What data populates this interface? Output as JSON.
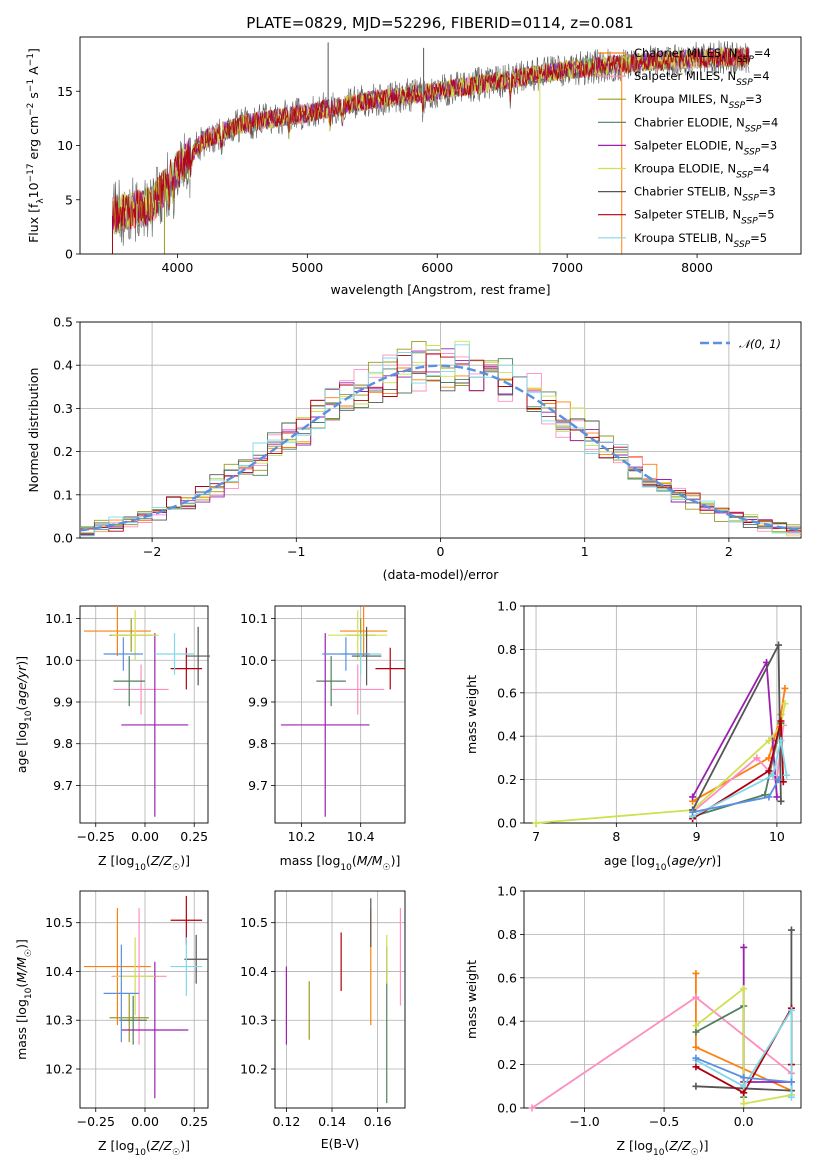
{
  "title": "PLATE=0829, MJD=52296, FIBERID=0114, z=0.081",
  "colors": [
    "#ff7f0e",
    "#ff8ec0",
    "#9a9a20",
    "#4f7f5f",
    "#9a20b0",
    "#d0e050",
    "#555555",
    "#b00010",
    "#80d8e8"
  ],
  "model_names": [
    "Chabrier MILES",
    "Salpeter MILES",
    "Kroupa MILES",
    "Chabrier ELODIE",
    "Salpeter ELODIE",
    "Kroupa ELODIE",
    "Chabrier STELIB",
    "Salpeter STELIB",
    "Kroupa STELIB"
  ],
  "chart_data": [
    {
      "id": "spectrum",
      "type": "line",
      "xlabel": "wavelength [Angstrom, rest frame]",
      "ylabel": "Flux [f_λ 10^-17 erg cm^-2 s^-1 A^-1]",
      "xlim": [
        3250,
        8800
      ],
      "ylim": [
        0,
        20
      ],
      "xticks": [
        4000,
        5000,
        6000,
        7000,
        8000
      ],
      "yticks": [
        0,
        5,
        10,
        15
      ],
      "data_range": [
        3500,
        8400
      ],
      "continuum": [
        [
          3500,
          3.5
        ],
        [
          3800,
          4.5
        ],
        [
          3950,
          7.0
        ],
        [
          4200,
          10.5
        ],
        [
          4500,
          12.0
        ],
        [
          5000,
          13.0
        ],
        [
          5500,
          14.2
        ],
        [
          6000,
          15.0
        ],
        [
          6500,
          16.0
        ],
        [
          7000,
          17.0
        ],
        [
          7500,
          17.6
        ],
        [
          8000,
          18.0
        ],
        [
          8400,
          18.2
        ]
      ],
      "legend": [
        {
          "name": "Chabrier MILES",
          "nssp": "4"
        },
        {
          "name": "Salpeter MILES",
          "nssp": "4"
        },
        {
          "name": "Kroupa MILES",
          "nssp": "3"
        },
        {
          "name": "Chabrier ELODIE",
          "nssp": "4"
        },
        {
          "name": "Salpeter ELODIE",
          "nssp": "3"
        },
        {
          "name": "Kroupa ELODIE",
          "nssp": "4"
        },
        {
          "name": "Chabrier STELIB",
          "nssp": "3"
        },
        {
          "name": "Salpeter STELIB",
          "nssp": "5"
        },
        {
          "name": "Kroupa STELIB",
          "nssp": "5"
        }
      ],
      "legend_position": "right",
      "grid": false
    },
    {
      "id": "residuals",
      "type": "step",
      "xlabel": "(data-model)/error",
      "ylabel": "Normed distribution",
      "xlim": [
        -2.5,
        2.5
      ],
      "ylim": [
        0,
        0.5
      ],
      "xticks": [
        -2,
        -1,
        0,
        1,
        2
      ],
      "yticks": [
        0.0,
        0.1,
        0.2,
        0.3,
        0.4,
        0.5
      ],
      "gaussian_label": "𝒩(0, 1)",
      "legend_position": "top-right",
      "grid": true
    },
    {
      "id": "age-vs-Z",
      "type": "errorbar",
      "xlabel": "Z [log10(Z/Z☉)]",
      "ylabel": "age [log10(age/yr)]",
      "xlim": [
        -0.33,
        0.32
      ],
      "ylim": [
        9.61,
        10.13
      ],
      "xticks": [
        -0.25,
        0.0,
        0.25
      ],
      "xticklabels": [
        "−0.25",
        "0.00",
        "0.25"
      ],
      "yticks": [
        9.7,
        9.8,
        9.9,
        10.0,
        10.1
      ],
      "points": [
        {
          "x": -0.14,
          "xerr": 0.17,
          "y": 10.07,
          "yerr": 0.06
        },
        {
          "x": -0.02,
          "xerr": 0.14,
          "y": 9.93,
          "yerr": 0.06
        },
        {
          "x": -0.07,
          "xerr": 0.11,
          "y": 10.06,
          "yerr": 0.04
        },
        {
          "x": -0.08,
          "xerr": 0.08,
          "y": 9.95,
          "yerr": 0.06
        },
        {
          "x": 0.05,
          "xerr": 0.17,
          "y": 9.845,
          "yerr": 0.22
        },
        {
          "x": -0.05,
          "xerr": 0.12,
          "y": 10.06,
          "yerr": 0.06
        },
        {
          "x": 0.27,
          "xerr": 0.06,
          "y": 10.01,
          "yerr": 0.07
        },
        {
          "x": 0.21,
          "xerr": 0.08,
          "y": 9.98,
          "yerr": 0.05
        },
        {
          "x": 0.15,
          "xerr": 0.1,
          "y": 10.015,
          "yerr": 0.05
        },
        {
          "x": -0.11,
          "xerr": 0.1,
          "y": 10.015,
          "yerr": 0.04
        }
      ],
      "grid": true
    },
    {
      "id": "age-vs-mass",
      "type": "errorbar",
      "xlabel": "mass [log10(M/M☉)]",
      "ylabel": "",
      "xlim": [
        10.11,
        10.55
      ],
      "ylim": [
        9.61,
        10.13
      ],
      "xticks": [
        10.2,
        10.4
      ],
      "yticks": [
        9.7,
        9.8,
        9.9,
        10.0,
        10.1
      ],
      "points": [
        {
          "x": 10.41,
          "xerr": 0.08,
          "y": 10.07,
          "yerr": 0.06
        },
        {
          "x": 10.39,
          "xerr": 0.09,
          "y": 9.93,
          "yerr": 0.06
        },
        {
          "x": 10.4,
          "xerr": 0.05,
          "y": 10.06,
          "yerr": 0.04
        },
        {
          "x": 10.3,
          "xerr": 0.05,
          "y": 9.95,
          "yerr": 0.06
        },
        {
          "x": 10.28,
          "xerr": 0.15,
          "y": 9.845,
          "yerr": 0.22
        },
        {
          "x": 10.39,
          "xerr": 0.1,
          "y": 10.06,
          "yerr": 0.06
        },
        {
          "x": 10.42,
          "xerr": 0.05,
          "y": 10.01,
          "yerr": 0.07
        },
        {
          "x": 10.5,
          "xerr": 0.05,
          "y": 9.98,
          "yerr": 0.05
        },
        {
          "x": 10.4,
          "xerr": 0.07,
          "y": 10.015,
          "yerr": 0.05
        },
        {
          "x": 10.35,
          "xerr": 0.08,
          "y": 10.015,
          "yerr": 0.04
        }
      ],
      "grid": true
    },
    {
      "id": "weight-vs-age",
      "type": "line",
      "xlabel": "age [log10(age/yr)]",
      "ylabel": "mass weight",
      "xlim": [
        6.85,
        10.3
      ],
      "ylim": [
        0,
        1
      ],
      "xticks": [
        7,
        8,
        9,
        10
      ],
      "yticks": [
        0.0,
        0.2,
        0.4,
        0.6,
        0.8,
        1.0
      ],
      "series": [
        {
          "color": "#ff7f0e",
          "points": [
            [
              8.95,
              0.1
            ],
            [
              9.9,
              0.3
            ],
            [
              10.05,
              0.5
            ],
            [
              10.1,
              0.62
            ]
          ]
        },
        {
          "color": "#ff8ec0",
          "points": [
            [
              8.95,
              0.05
            ],
            [
              9.75,
              0.3
            ],
            [
              10.0,
              0.2
            ],
            [
              10.08,
              0.45
            ]
          ]
        },
        {
          "color": "#4f7f5f",
          "points": [
            [
              8.95,
              0.03
            ],
            [
              9.85,
              0.13
            ],
            [
              10.0,
              0.38
            ],
            [
              10.05,
              0.46
            ]
          ]
        },
        {
          "color": "#9a20b0",
          "points": [
            [
              8.95,
              0.12
            ],
            [
              9.87,
              0.74
            ],
            [
              10.0,
              0.12
            ]
          ]
        },
        {
          "color": "#d0e050",
          "points": [
            [
              7.0,
              0.0
            ],
            [
              8.95,
              0.06
            ],
            [
              9.9,
              0.38
            ],
            [
              10.05,
              0.45
            ],
            [
              10.1,
              0.55
            ]
          ]
        },
        {
          "color": "#555555",
          "points": [
            [
              8.95,
              0.06
            ],
            [
              10.02,
              0.82
            ],
            [
              10.05,
              0.1
            ]
          ]
        },
        {
          "color": "#b00010",
          "points": [
            [
              8.95,
              0.02
            ],
            [
              9.9,
              0.24
            ],
            [
              10.05,
              0.47
            ],
            [
              10.08,
              0.19
            ]
          ]
        },
        {
          "color": "#80d8e8",
          "points": [
            [
              8.95,
              0.03
            ],
            [
              9.95,
              0.22
            ],
            [
              10.05,
              0.38
            ],
            [
              10.12,
              0.22
            ]
          ]
        },
        {
          "color": "#5b8fdf",
          "points": [
            [
              8.95,
              0.05
            ],
            [
              9.9,
              0.12
            ],
            [
              10.02,
              0.2
            ]
          ]
        }
      ],
      "grid": true
    },
    {
      "id": "mass-vs-Z",
      "type": "errorbar",
      "xlabel": "Z [log10(Z/Z☉)]",
      "ylabel": "mass [log10(M/M☉)]",
      "xlim": [
        -0.33,
        0.32
      ],
      "ylim": [
        10.12,
        10.565
      ],
      "xticks": [
        -0.25,
        0.0,
        0.25
      ],
      "xticklabels": [
        "−0.25",
        "0.00",
        "0.25"
      ],
      "yticks": [
        10.2,
        10.3,
        10.4,
        10.5
      ],
      "points": [
        {
          "x": -0.14,
          "xerr": 0.17,
          "y": 10.41,
          "yerr": 0.12
        },
        {
          "x": -0.03,
          "xerr": 0.14,
          "y": 10.39,
          "yerr": 0.14
        },
        {
          "x": -0.08,
          "xerr": 0.1,
          "y": 10.305,
          "yerr": 0.05
        },
        {
          "x": -0.06,
          "xerr": 0.07,
          "y": 10.3,
          "yerr": 0.05
        },
        {
          "x": 0.05,
          "xerr": 0.17,
          "y": 10.28,
          "yerr": 0.14
        },
        {
          "x": -0.05,
          "xerr": 0.1,
          "y": 10.39,
          "yerr": 0.08
        },
        {
          "x": 0.26,
          "xerr": 0.06,
          "y": 10.425,
          "yerr": 0.05
        },
        {
          "x": 0.21,
          "xerr": 0.08,
          "y": 10.505,
          "yerr": 0.05
        },
        {
          "x": 0.21,
          "xerr": 0.08,
          "y": 10.41,
          "yerr": 0.06
        },
        {
          "x": -0.12,
          "xerr": 0.09,
          "y": 10.355,
          "yerr": 0.1
        }
      ],
      "grid": true
    },
    {
      "id": "mass-vs-EBV",
      "type": "errorbar",
      "xlabel": "E(B-V)",
      "ylabel": "",
      "xlim": [
        0.115,
        0.172
      ],
      "ylim": [
        10.12,
        10.565
      ],
      "xticks": [
        0.12,
        0.14,
        0.16
      ],
      "yticks": [
        10.2,
        10.3,
        10.4,
        10.5
      ],
      "points": [
        {
          "x": 0.157,
          "xerr": 0,
          "y": 10.41,
          "yerr": 0.12
        },
        {
          "x": 0.17,
          "xerr": 0,
          "y": 10.43,
          "yerr": 0.1
        },
        {
          "x": 0.13,
          "xerr": 0,
          "y": 10.32,
          "yerr": 0.06
        },
        {
          "x": 0.164,
          "xerr": 0,
          "y": 10.29,
          "yerr": 0.16
        },
        {
          "x": 0.12,
          "xerr": 0,
          "y": 10.33,
          "yerr": 0.08
        },
        {
          "x": 0.164,
          "xerr": 0,
          "y": 10.425,
          "yerr": 0.05
        },
        {
          "x": 0.157,
          "xerr": 0,
          "y": 10.5,
          "yerr": 0.05
        },
        {
          "x": 0.144,
          "xerr": 0,
          "y": 10.42,
          "yerr": 0.06
        }
      ],
      "grid": true
    },
    {
      "id": "weight-vs-Z",
      "type": "line",
      "xlabel": "Z [log10(Z/Z☉)]",
      "ylabel": "mass weight",
      "xlim": [
        -1.38,
        0.36
      ],
      "ylim": [
        0,
        1
      ],
      "xticks": [
        -1.0,
        -0.5,
        0.0
      ],
      "xticklabels": [
        "−1.0",
        "−0.5",
        "0.0"
      ],
      "yticks": [
        0.0,
        0.2,
        0.4,
        0.6,
        0.8,
        1.0
      ],
      "series": [
        {
          "color": "#ff7f0e",
          "points": [
            [
              -0.3,
              0.62
            ],
            [
              -0.3,
              0.28
            ],
            [
              0.3,
              0.08
            ]
          ]
        },
        {
          "color": "#ff8ec0",
          "points": [
            [
              -1.33,
              0.0
            ],
            [
              -0.3,
              0.51
            ],
            [
              0.3,
              0.16
            ]
          ]
        },
        {
          "color": "#4f7f5f",
          "points": [
            [
              -0.3,
              0.35
            ],
            [
              0.0,
              0.47
            ],
            [
              0.0,
              0.05
            ]
          ]
        },
        {
          "color": "#9a20b0",
          "points": [
            [
              0.0,
              0.74
            ],
            [
              0.0,
              0.12
            ],
            [
              0.3,
              0.12
            ]
          ]
        },
        {
          "color": "#d0e050",
          "points": [
            [
              -0.3,
              0.38
            ],
            [
              0.0,
              0.55
            ],
            [
              0.0,
              0.02
            ],
            [
              0.3,
              0.06
            ]
          ]
        },
        {
          "color": "#555555",
          "points": [
            [
              -0.3,
              0.1
            ],
            [
              0.3,
              0.08
            ],
            [
              0.3,
              0.82
            ]
          ]
        },
        {
          "color": "#b00010",
          "points": [
            [
              -0.3,
              0.19
            ],
            [
              0.0,
              0.07
            ],
            [
              0.3,
              0.46
            ],
            [
              0.3,
              0.2
            ]
          ]
        },
        {
          "color": "#80d8e8",
          "points": [
            [
              -0.3,
              0.22
            ],
            [
              0.0,
              0.1
            ],
            [
              0.3,
              0.45
            ],
            [
              0.3,
              0.05
            ]
          ]
        },
        {
          "color": "#5b8fdf",
          "points": [
            [
              -0.3,
              0.23
            ],
            [
              0.0,
              0.14
            ],
            [
              0.3,
              0.12
            ]
          ]
        }
      ],
      "grid": true
    }
  ]
}
